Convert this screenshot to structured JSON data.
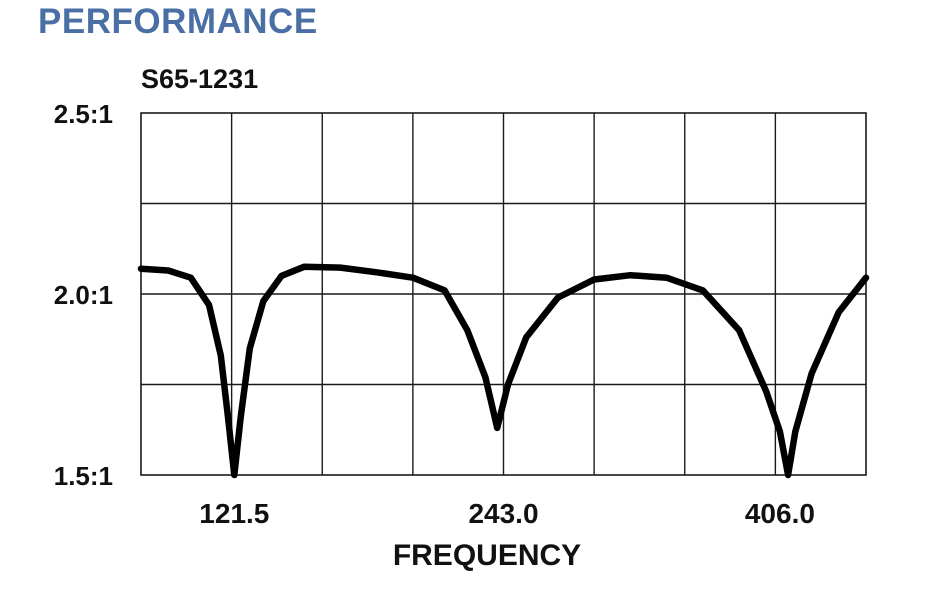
{
  "page": {
    "heading": "PERFORMANCE"
  },
  "chart_data": {
    "type": "line",
    "title": "S65-1231",
    "xlabel": "FREQUENCY",
    "ylabel": "",
    "y_tick_labels": [
      "2.5:1",
      "2.0:1",
      "1.5:1"
    ],
    "y_tick_values": [
      2.5,
      2.0,
      1.5
    ],
    "x_tick_labels": [
      "121.5",
      "243.0",
      "406.0"
    ],
    "ylim": [
      1.5,
      2.5
    ],
    "grid": true,
    "series": [
      {
        "points": [
          [
            0.0,
            2.07
          ],
          [
            0.3,
            2.065
          ],
          [
            0.55,
            2.045
          ],
          [
            0.75,
            1.97
          ],
          [
            0.88,
            1.83
          ],
          [
            0.96,
            1.66
          ],
          [
            1.03,
            1.5
          ],
          [
            1.1,
            1.66
          ],
          [
            1.2,
            1.85
          ],
          [
            1.35,
            1.98
          ],
          [
            1.55,
            2.05
          ],
          [
            1.8,
            2.075
          ],
          [
            2.2,
            2.073
          ],
          [
            2.6,
            2.06
          ],
          [
            3.0,
            2.045
          ],
          [
            3.35,
            2.01
          ],
          [
            3.6,
            1.9
          ],
          [
            3.8,
            1.77
          ],
          [
            3.93,
            1.63
          ],
          [
            4.05,
            1.75
          ],
          [
            4.25,
            1.88
          ],
          [
            4.6,
            1.99
          ],
          [
            5.0,
            2.04
          ],
          [
            5.4,
            2.052
          ],
          [
            5.8,
            2.045
          ],
          [
            6.2,
            2.01
          ],
          [
            6.6,
            1.9
          ],
          [
            6.9,
            1.73
          ],
          [
            7.05,
            1.62
          ],
          [
            7.14,
            1.5
          ],
          [
            7.22,
            1.62
          ],
          [
            7.4,
            1.78
          ],
          [
            7.7,
            1.95
          ],
          [
            8.0,
            2.045
          ]
        ]
      }
    ]
  }
}
